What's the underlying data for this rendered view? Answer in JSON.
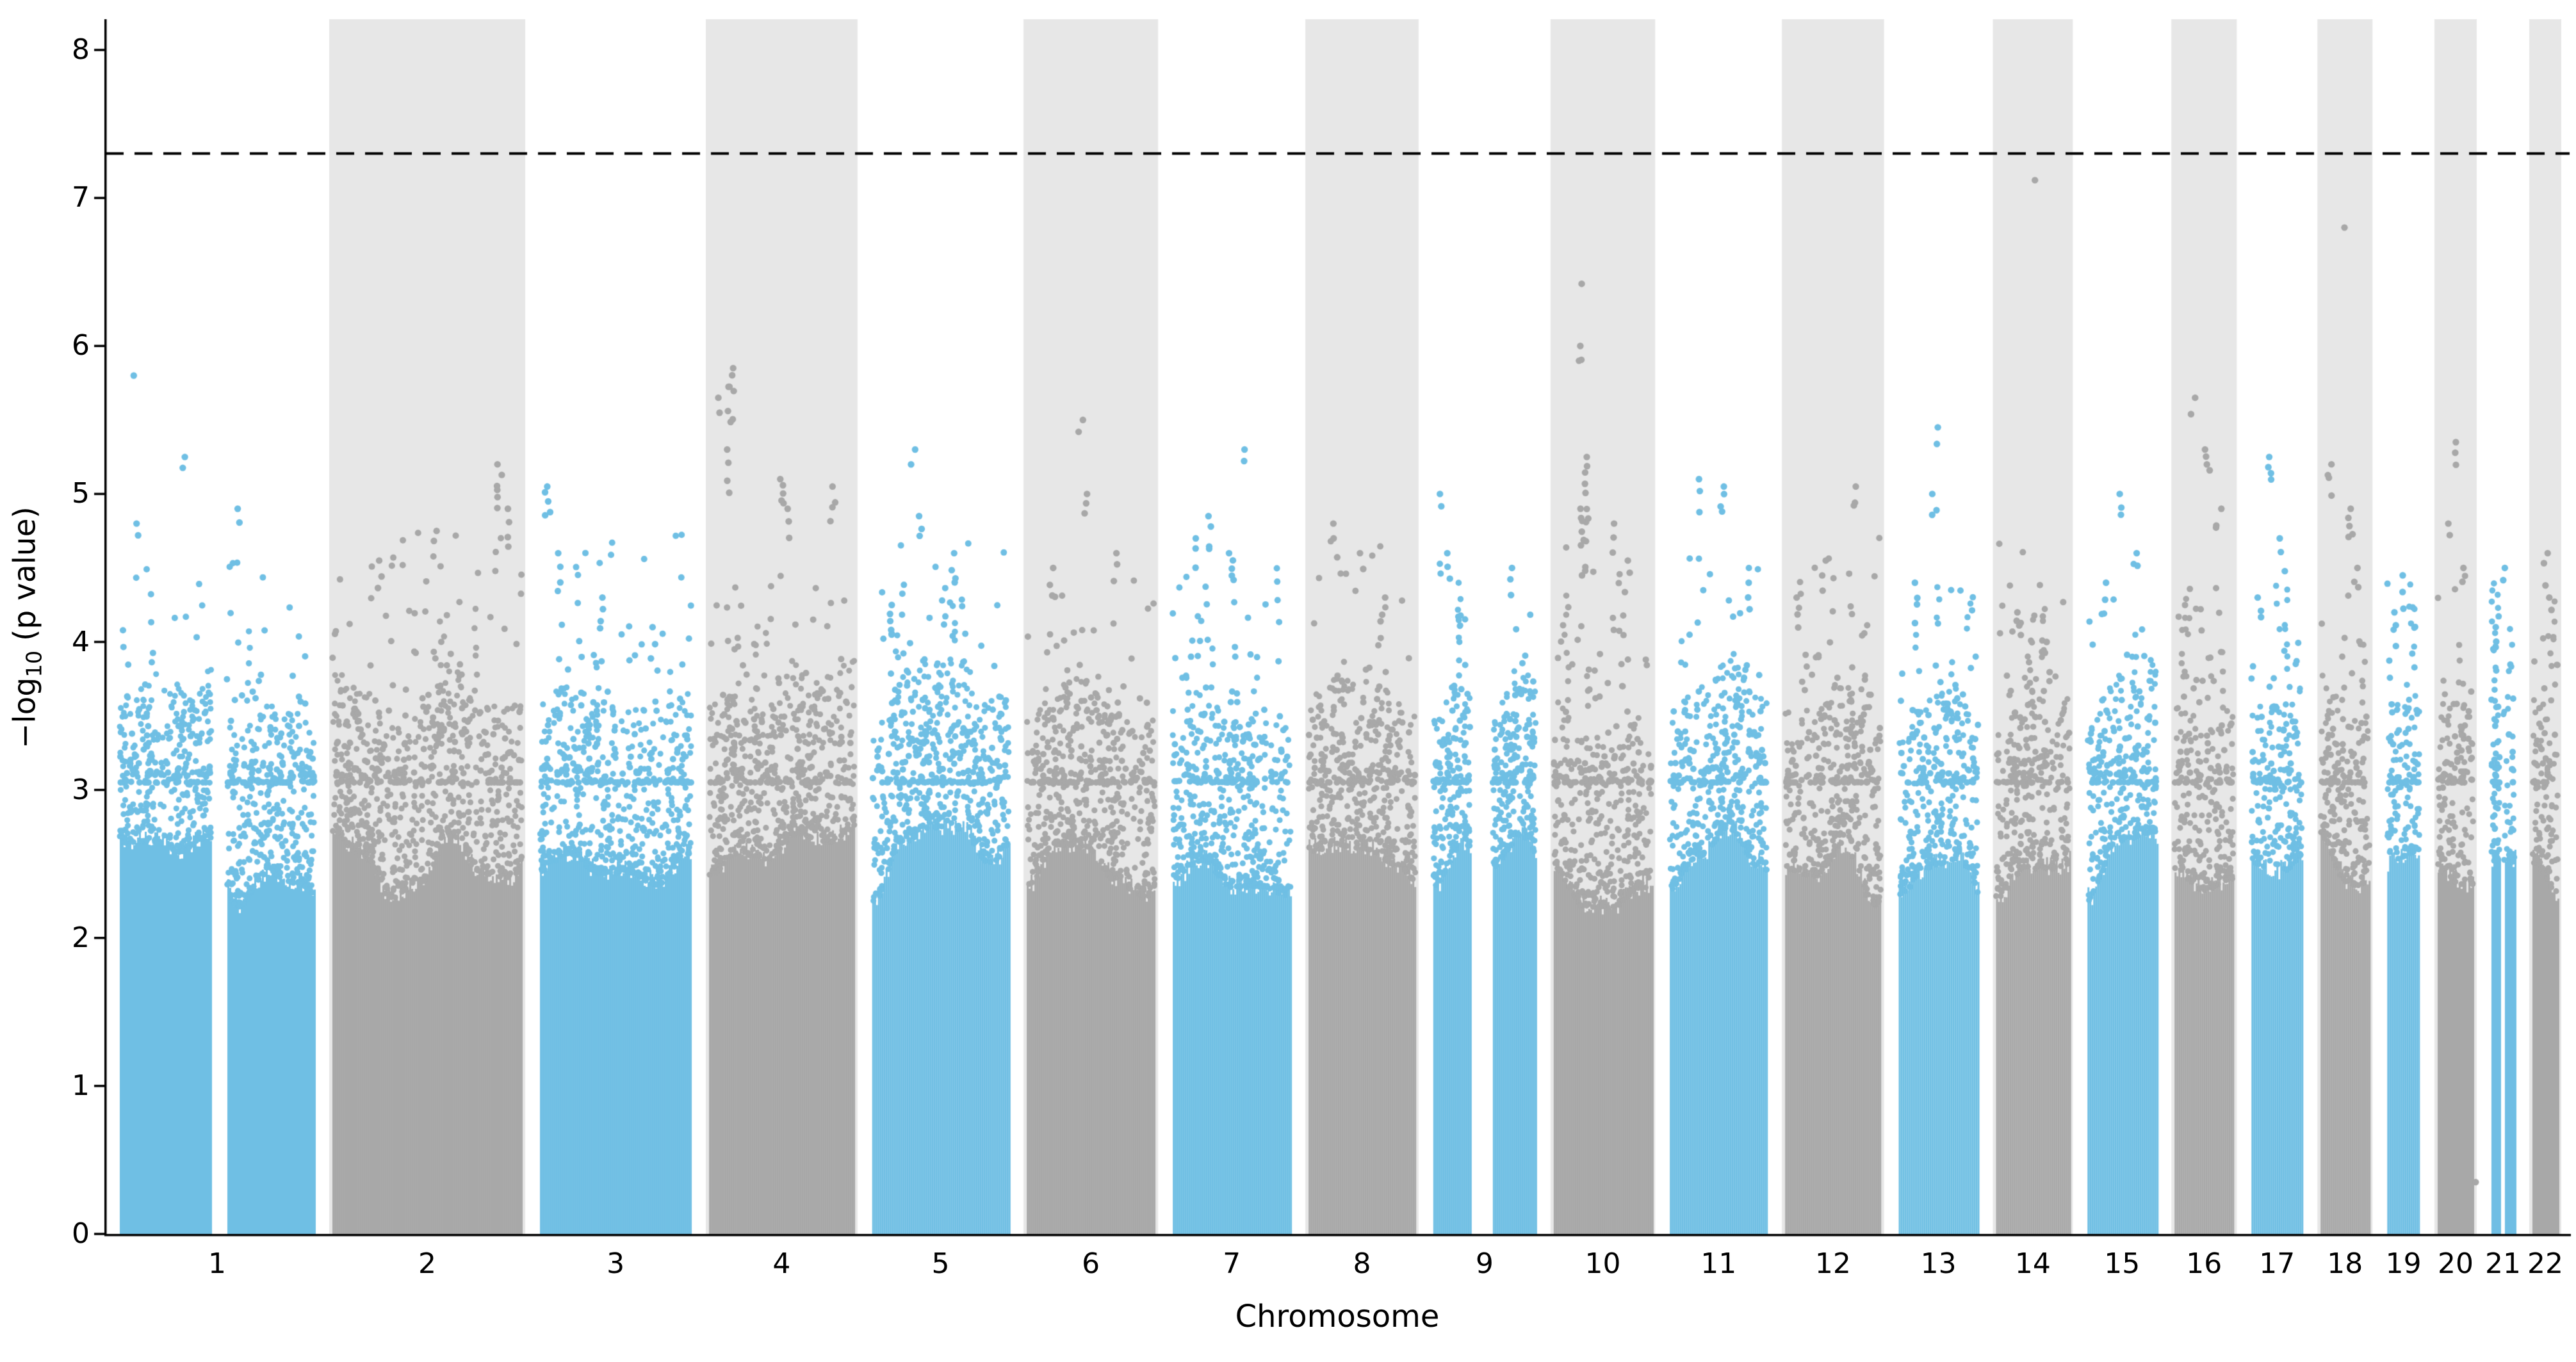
{
  "chart_data": {
    "type": "scatter",
    "variant": "manhattan-plot",
    "title": "",
    "xlabel": "Chromosome",
    "ylabel": "-log10 (p value)",
    "ylabel_parts": {
      "pre": "−log",
      "sub": "10",
      "post": " (p value)"
    },
    "ylim": [
      0,
      8.2
    ],
    "yticks": [
      0,
      1,
      2,
      3,
      4,
      5,
      6,
      7,
      8
    ],
    "grid": false,
    "legend": null,
    "significance_line": {
      "y": 7.3,
      "style": "dashed",
      "color": "#000000"
    },
    "colors": {
      "odd_chrom": "#6FBFE4",
      "even_chrom": "#A8A8A8",
      "band": "#E7E7E7",
      "axis": "#000000",
      "background": "#ffffff"
    },
    "baseline_dense_top": 2.8,
    "chromosomes": [
      {
        "label": "1",
        "length_mb": 249,
        "color": "blue",
        "max": 5.8,
        "gaps": [
          [
            0.47,
            0.55
          ]
        ],
        "peaks": [
          {
            "pos": 0.07,
            "top": 5.8,
            "n": 1
          },
          {
            "pos": 0.1,
            "top": 4.8,
            "n": 2
          },
          {
            "pos": 0.33,
            "top": 5.25,
            "n": 2
          },
          {
            "pos": 0.62,
            "top": 4.9,
            "n": 2
          }
        ]
      },
      {
        "label": "2",
        "length_mb": 243,
        "color": "gray",
        "max": 5.2,
        "gaps": [],
        "peaks": [
          {
            "pos": 0.88,
            "top": 5.2,
            "n": 6,
            "spacing": 0.06
          },
          {
            "pos": 0.93,
            "top": 4.9,
            "n": 4
          },
          {
            "pos": 0.55,
            "top": 4.75,
            "n": 2
          },
          {
            "pos": 0.25,
            "top": 4.55,
            "n": 3
          }
        ]
      },
      {
        "label": "3",
        "length_mb": 198,
        "color": "blue",
        "max": 5.1,
        "gaps": [],
        "peaks": [
          {
            "pos": 0.05,
            "top": 5.05,
            "n": 5,
            "spacing": 0.05
          },
          {
            "pos": 0.12,
            "top": 4.6,
            "n": 3
          },
          {
            "pos": 0.4,
            "top": 4.3,
            "n": 4
          },
          {
            "pos": 0.75,
            "top": 4.1,
            "n": 3
          }
        ]
      },
      {
        "label": "4",
        "length_mb": 191,
        "color": "gray",
        "max": 5.85,
        "gaps": [],
        "peaks": [
          {
            "pos": 0.15,
            "top": 5.85,
            "n": 8,
            "spacing": 0.05
          },
          {
            "pos": 0.08,
            "top": 5.65,
            "n": 2
          },
          {
            "pos": 0.12,
            "top": 5.3,
            "n": 4
          },
          {
            "pos": 0.5,
            "top": 5.1,
            "n": 5,
            "spacing": 0.05
          },
          {
            "pos": 0.55,
            "top": 4.9,
            "n": 3
          },
          {
            "pos": 0.85,
            "top": 5.05,
            "n": 4
          }
        ]
      },
      {
        "label": "5",
        "length_mb": 181,
        "color": "blue",
        "max": 5.3,
        "gaps": [],
        "peaks": [
          {
            "pos": 0.3,
            "top": 5.3,
            "n": 2
          },
          {
            "pos": 0.35,
            "top": 4.85,
            "n": 3
          },
          {
            "pos": 0.6,
            "top": 4.6,
            "n": 4
          },
          {
            "pos": 0.13,
            "top": 4.25,
            "n": 6,
            "spacing": 0.05
          }
        ]
      },
      {
        "label": "6",
        "length_mb": 171,
        "color": "gray",
        "max": 5.5,
        "gaps": [],
        "peaks": [
          {
            "pos": 0.42,
            "top": 5.5,
            "n": 2
          },
          {
            "pos": 0.45,
            "top": 5.0,
            "n": 3
          },
          {
            "pos": 0.2,
            "top": 4.5,
            "n": 4
          },
          {
            "pos": 0.7,
            "top": 4.6,
            "n": 3
          }
        ]
      },
      {
        "label": "7",
        "length_mb": 159,
        "color": "blue",
        "max": 5.3,
        "gaps": [],
        "peaks": [
          {
            "pos": 0.62,
            "top": 5.3,
            "n": 2
          },
          {
            "pos": 0.3,
            "top": 4.85,
            "n": 4
          },
          {
            "pos": 0.2,
            "top": 4.7,
            "n": 3
          },
          {
            "pos": 0.5,
            "top": 4.6,
            "n": 5,
            "spacing": 0.05
          }
        ]
      },
      {
        "label": "8",
        "length_mb": 146,
        "color": "gray",
        "max": 4.8,
        "gaps": [],
        "peaks": [
          {
            "pos": 0.25,
            "top": 4.8,
            "n": 3
          },
          {
            "pos": 0.5,
            "top": 4.6,
            "n": 2
          },
          {
            "pos": 0.7,
            "top": 4.3,
            "n": 3
          }
        ]
      },
      {
        "label": "9",
        "length_mb": 141,
        "color": "blue",
        "max": 5.0,
        "gaps": [
          [
            0.36,
            0.58
          ]
        ],
        "peaks": [
          {
            "pos": 0.08,
            "top": 5.0,
            "n": 2
          },
          {
            "pos": 0.15,
            "top": 4.6,
            "n": 3
          },
          {
            "pos": 0.75,
            "top": 4.5,
            "n": 3
          }
        ]
      },
      {
        "label": "10",
        "length_mb": 136,
        "color": "gray",
        "max": 6.42,
        "gaps": [],
        "peaks": [
          {
            "pos": 0.28,
            "top": 6.42,
            "n": 1
          },
          {
            "pos": 0.3,
            "top": 6.0,
            "n": 2,
            "spacing": 0.1
          },
          {
            "pos": 0.27,
            "top": 5.9,
            "n": 1
          },
          {
            "pos": 0.33,
            "top": 5.25,
            "n": 8,
            "spacing": 0.07
          },
          {
            "pos": 0.3,
            "top": 4.9,
            "n": 10,
            "spacing": 0.05
          },
          {
            "pos": 0.6,
            "top": 4.8,
            "n": 3
          },
          {
            "pos": 0.75,
            "top": 4.55,
            "n": 3
          }
        ]
      },
      {
        "label": "11",
        "length_mb": 135,
        "color": "blue",
        "max": 5.1,
        "gaps": [],
        "peaks": [
          {
            "pos": 0.3,
            "top": 5.1,
            "n": 3
          },
          {
            "pos": 0.55,
            "top": 5.05,
            "n": 4,
            "spacing": 0.06
          },
          {
            "pos": 0.8,
            "top": 4.4,
            "n": 3
          }
        ]
      },
      {
        "label": "12",
        "length_mb": 133,
        "color": "gray",
        "max": 5.05,
        "gaps": [],
        "peaks": [
          {
            "pos": 0.72,
            "top": 5.05,
            "n": 3
          },
          {
            "pos": 0.4,
            "top": 4.55,
            "n": 3
          },
          {
            "pos": 0.15,
            "top": 4.3,
            "n": 3
          }
        ]
      },
      {
        "label": "13",
        "length_mb": 114,
        "color": "blue",
        "max": 5.45,
        "gaps": [],
        "peaks": [
          {
            "pos": 0.5,
            "top": 5.45,
            "n": 2
          },
          {
            "pos": 0.45,
            "top": 5.0,
            "n": 3
          },
          {
            "pos": 0.2,
            "top": 4.4,
            "n": 4
          }
        ]
      },
      {
        "label": "14",
        "length_mb": 107,
        "color": "gray",
        "max": 7.12,
        "gaps": [],
        "peaks": [
          {
            "pos": 0.52,
            "top": 7.12,
            "n": 1
          },
          {
            "pos": 0.3,
            "top": 4.2,
            "n": 4,
            "spacing": 0.05
          },
          {
            "pos": 0.7,
            "top": 4.0,
            "n": 3
          }
        ]
      },
      {
        "label": "15",
        "length_mb": 102,
        "color": "blue",
        "max": 5.0,
        "gaps": [],
        "peaks": [
          {
            "pos": 0.45,
            "top": 5.0,
            "n": 3
          },
          {
            "pos": 0.7,
            "top": 4.6,
            "n": 2
          },
          {
            "pos": 0.25,
            "top": 4.4,
            "n": 3
          }
        ]
      },
      {
        "label": "16",
        "length_mb": 90,
        "color": "gray",
        "max": 5.65,
        "gaps": [],
        "peaks": [
          {
            "pos": 0.3,
            "top": 5.65,
            "n": 2
          },
          {
            "pos": 0.55,
            "top": 5.3,
            "n": 4,
            "spacing": 0.06
          },
          {
            "pos": 0.75,
            "top": 4.9,
            "n": 3
          }
        ]
      },
      {
        "label": "17",
        "length_mb": 81,
        "color": "blue",
        "max": 5.25,
        "gaps": [],
        "peaks": [
          {
            "pos": 0.35,
            "top": 5.25,
            "n": 4,
            "spacing": 0.06
          },
          {
            "pos": 0.6,
            "top": 4.7,
            "n": 3
          },
          {
            "pos": 0.15,
            "top": 4.3,
            "n": 3
          }
        ]
      },
      {
        "label": "18",
        "length_mb": 78,
        "color": "gray",
        "max": 6.8,
        "gaps": [],
        "peaks": [
          {
            "pos": 0.45,
            "top": 6.8,
            "n": 1
          },
          {
            "pos": 0.2,
            "top": 5.2,
            "n": 4,
            "spacing": 0.06
          },
          {
            "pos": 0.6,
            "top": 4.9,
            "n": 5,
            "spacing": 0.06
          },
          {
            "pos": 0.75,
            "top": 4.5,
            "n": 3
          }
        ]
      },
      {
        "label": "19",
        "length_mb": 59,
        "color": "blue",
        "max": 4.45,
        "gaps": [],
        "peaks": [
          {
            "pos": 0.5,
            "top": 4.45,
            "n": 3
          },
          {
            "pos": 0.25,
            "top": 4.2,
            "n": 3
          }
        ]
      },
      {
        "label": "20",
        "length_mb": 63,
        "color": "gray",
        "max": 5.35,
        "gaps": [],
        "peaks": [
          {
            "pos": 0.55,
            "top": 5.35,
            "n": 3,
            "spacing": 0.07
          },
          {
            "pos": 0.3,
            "top": 4.8,
            "n": 2
          },
          {
            "pos": 0.7,
            "top": 4.5,
            "n": 2
          },
          {
            "pos": 1.08,
            "top": 0.35,
            "n": 1
          }
        ]
      },
      {
        "label": "21",
        "length_mb": 48,
        "color": "blue",
        "max": 4.5,
        "gaps": [
          [
            0.35,
            0.5
          ]
        ],
        "peaks": [
          {
            "pos": 0.6,
            "top": 4.5,
            "n": 2
          },
          {
            "pos": 0.2,
            "top": 4.1,
            "n": 3
          }
        ]
      },
      {
        "label": "22",
        "length_mb": 51,
        "color": "gray",
        "max": 4.6,
        "gaps": [],
        "peaks": [
          {
            "pos": 0.5,
            "top": 4.6,
            "n": 3
          },
          {
            "pos": 0.75,
            "top": 4.3,
            "n": 2
          }
        ]
      }
    ]
  }
}
